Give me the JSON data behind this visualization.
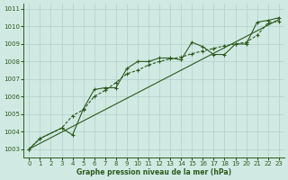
{
  "line1_x": [
    0,
    1,
    3,
    4,
    5,
    6,
    7,
    8,
    9,
    10,
    11,
    12,
    13,
    14,
    15,
    16,
    17,
    18,
    19,
    20,
    21,
    22,
    23
  ],
  "line1_y": [
    1003.0,
    1003.6,
    1004.2,
    1003.8,
    1005.3,
    1006.4,
    1006.5,
    1006.5,
    1007.6,
    1008.0,
    1008.0,
    1008.2,
    1008.2,
    1008.1,
    1009.1,
    1008.85,
    1008.4,
    1008.4,
    1009.0,
    1009.0,
    1010.25,
    1010.35,
    1010.5
  ],
  "line2_x": [
    0,
    1,
    3,
    4,
    5,
    6,
    7,
    8,
    9,
    10,
    11,
    12,
    13,
    14,
    15,
    16,
    17,
    18,
    19,
    20,
    21,
    22,
    23
  ],
  "line2_y": [
    1003.0,
    1003.6,
    1004.2,
    1004.9,
    1005.25,
    1006.0,
    1006.35,
    1006.8,
    1007.3,
    1007.5,
    1007.8,
    1008.0,
    1008.15,
    1008.25,
    1008.45,
    1008.6,
    1008.75,
    1008.9,
    1009.0,
    1009.1,
    1009.5,
    1010.2,
    1010.3
  ],
  "line3_x": [
    0,
    23
  ],
  "line3_y": [
    1003.0,
    1010.4
  ],
  "bg_color": "#d0eae3",
  "line_color": "#2d5a1e",
  "grid_color": "#b0cfc8",
  "xlabel": "Graphe pression niveau de la mer (hPa)",
  "xlim": [
    -0.5,
    23.5
  ],
  "ylim": [
    1002.5,
    1011.3
  ],
  "yticks": [
    1003,
    1004,
    1005,
    1006,
    1007,
    1008,
    1009,
    1010,
    1011
  ],
  "xticks": [
    0,
    1,
    2,
    3,
    4,
    5,
    6,
    7,
    8,
    9,
    10,
    11,
    12,
    13,
    14,
    15,
    16,
    17,
    18,
    19,
    20,
    21,
    22,
    23
  ],
  "label_fontsize": 5.5,
  "tick_fontsize": 5.0
}
